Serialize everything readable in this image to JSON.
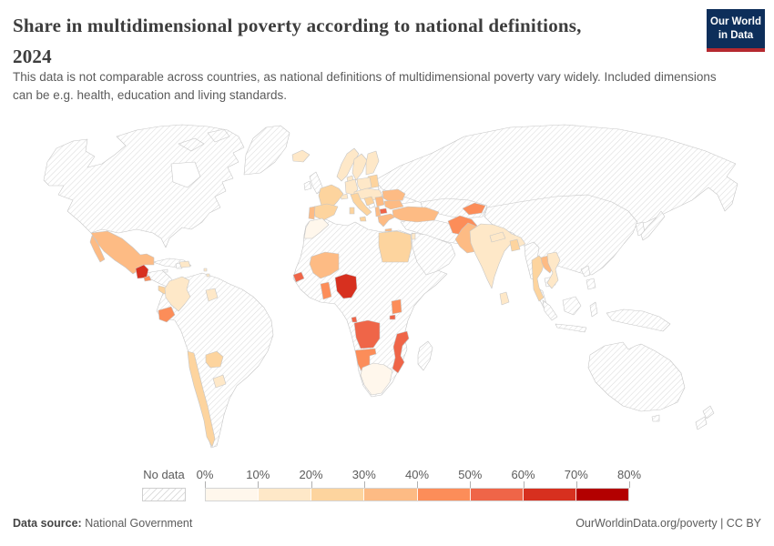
{
  "header": {
    "title_line1": "Share in multidimensional poverty according to national definitions,",
    "title_line2": "2024",
    "subtitle": "This data is not comparable across countries, as national definitions of multidimensional poverty vary widely. Included dimensions can be e.g. health, education and living standards.",
    "logo": {
      "line1": "Our World",
      "line2": "in Data",
      "bg_color": "#0d2e5a",
      "accent_color": "#b5292f"
    }
  },
  "legend": {
    "no_data_label": "No data",
    "tick_labels": [
      "0%",
      "10%",
      "20%",
      "30%",
      "40%",
      "50%",
      "60%",
      "70%",
      "80%"
    ],
    "bins": [
      {
        "range": "0%-10%",
        "color": "#fff7ec"
      },
      {
        "range": "10%-20%",
        "color": "#fee8c8"
      },
      {
        "range": "20%-30%",
        "color": "#fdd49e"
      },
      {
        "range": "30%-40%",
        "color": "#fdbb84"
      },
      {
        "range": "40%-50%",
        "color": "#fc8d59"
      },
      {
        "range": "50%-60%",
        "color": "#ef6548"
      },
      {
        "range": "60%-70%",
        "color": "#d7301f"
      },
      {
        "range": "70%-80%",
        "color": "#b30000"
      }
    ]
  },
  "footer": {
    "source_label": "Data source:",
    "source_value": " National Government",
    "right_text": "OurWorldinData.org/poverty | CC BY"
  },
  "chart_data": {
    "type": "choropleth-map",
    "title": "Share in multidimensional poverty according to national definitions, 2024",
    "unit": "%",
    "no_data_style": "diagonal-hatch",
    "color_scheme": "OrRd",
    "bin_edges": [
      0,
      10,
      20,
      30,
      40,
      50,
      60,
      70,
      80
    ],
    "countries": [
      {
        "id": "mexico",
        "name": "Mexico",
        "bin": "30-40%",
        "color": "#fdbb84"
      },
      {
        "id": "guatemala",
        "name": "Guatemala",
        "bin": "60-70%",
        "color": "#d7301f"
      },
      {
        "id": "el-salvador",
        "name": "El Salvador",
        "bin": "40-50%",
        "color": "#fc8d59"
      },
      {
        "id": "costa-rica",
        "name": "Costa Rica",
        "bin": "20-30%",
        "color": "#fdd49e"
      },
      {
        "id": "panama",
        "name": "Panama",
        "bin": "20-30%",
        "color": "#fdd49e"
      },
      {
        "id": "dominican-republic",
        "name": "Dominican Republic",
        "bin": "10-20%",
        "color": "#fee8c8"
      },
      {
        "id": "lesser-antilles",
        "name": "Lesser Antilles",
        "bin": "10-20%",
        "color": "#fee8c8"
      },
      {
        "id": "colombia",
        "name": "Colombia",
        "bin": "10-20%",
        "color": "#fee8c8"
      },
      {
        "id": "guyana",
        "name": "Guyana",
        "bin": "10-20%",
        "color": "#fee8c8"
      },
      {
        "id": "ecuador",
        "name": "Ecuador",
        "bin": "40-50%",
        "color": "#fc8d59"
      },
      {
        "id": "chile",
        "name": "Chile",
        "bin": "20-30%",
        "color": "#fdd49e"
      },
      {
        "id": "paraguay",
        "name": "Paraguay",
        "bin": "20-30%",
        "color": "#fdd49e"
      },
      {
        "id": "uruguay",
        "name": "Uruguay",
        "bin": "10-20%",
        "color": "#fee8c8"
      },
      {
        "id": "iceland",
        "name": "Iceland",
        "bin": "10-20%",
        "color": "#fee8c8"
      },
      {
        "id": "norway",
        "name": "Norway",
        "bin": "10-20%",
        "color": "#fee8c8"
      },
      {
        "id": "sweden",
        "name": "Sweden",
        "bin": "10-20%",
        "color": "#fee8c8"
      },
      {
        "id": "finland",
        "name": "Finland",
        "bin": "10-20%",
        "color": "#fee8c8"
      },
      {
        "id": "denmark",
        "name": "Denmark",
        "bin": "10-20%",
        "color": "#fee8c8"
      },
      {
        "id": "baltics",
        "name": "Baltic states",
        "bin": "20-30%",
        "color": "#fdd49e"
      },
      {
        "id": "germany",
        "name": "Germany",
        "bin": "10-20%",
        "color": "#fee8c8"
      },
      {
        "id": "poland",
        "name": "Poland",
        "bin": "10-20%",
        "color": "#fee8c8"
      },
      {
        "id": "central-europe",
        "name": "Czechia / Slovakia / Austria / Hungary",
        "bin": "10-20%",
        "color": "#fee8c8"
      },
      {
        "id": "switzerland",
        "name": "Switzerland",
        "bin": "10-20%",
        "color": "#fee8c8"
      },
      {
        "id": "france",
        "name": "France",
        "bin": "20-30%",
        "color": "#fdd49e"
      },
      {
        "id": "spain",
        "name": "Spain",
        "bin": "20-30%",
        "color": "#fdd49e"
      },
      {
        "id": "portugal",
        "name": "Portugal",
        "bin": "30-40%",
        "color": "#fdbb84"
      },
      {
        "id": "italy",
        "name": "Italy",
        "bin": "20-30%",
        "color": "#fdd49e"
      },
      {
        "id": "croatia",
        "name": "Croatia",
        "bin": "20-30%",
        "color": "#fdd49e"
      },
      {
        "id": "serbia",
        "name": "Serbia",
        "bin": "30-40%",
        "color": "#fdbb84"
      },
      {
        "id": "romania",
        "name": "Romania",
        "bin": "30-40%",
        "color": "#fdbb84"
      },
      {
        "id": "bulgaria",
        "name": "Bulgaria",
        "bin": "30-40%",
        "color": "#fdbb84"
      },
      {
        "id": "north-macedonia",
        "name": "North Macedonia",
        "bin": "50-60%",
        "color": "#ef6548"
      },
      {
        "id": "albania",
        "name": "Albania",
        "bin": "30-40%",
        "color": "#fdbb84"
      },
      {
        "id": "greece",
        "name": "Greece",
        "bin": "30-40%",
        "color": "#fdbb84"
      },
      {
        "id": "turkey",
        "name": "Turkey",
        "bin": "30-40%",
        "color": "#fdbb84"
      },
      {
        "id": "israel",
        "name": "Israel",
        "bin": "10-20%",
        "color": "#fee8c8"
      },
      {
        "id": "morocco",
        "name": "Morocco",
        "bin": "0-10%",
        "color": "#fff7ec"
      },
      {
        "id": "egypt",
        "name": "Egypt",
        "bin": "20-30%",
        "color": "#fdd49e"
      },
      {
        "id": "mali",
        "name": "Mali",
        "bin": "30-40%",
        "color": "#fdbb84"
      },
      {
        "id": "senegal",
        "name": "Senegal",
        "bin": "50-60%",
        "color": "#ef6548"
      },
      {
        "id": "ghana",
        "name": "Ghana",
        "bin": "40-50%",
        "color": "#fc8d59"
      },
      {
        "id": "nigeria",
        "name": "Nigeria",
        "bin": "60-70%",
        "color": "#d7301f"
      },
      {
        "id": "uganda",
        "name": "Uganda",
        "bin": "40-50%",
        "color": "#fc8d59"
      },
      {
        "id": "rwanda",
        "name": "Rwanda",
        "bin": "50-60%",
        "color": "#ef6548"
      },
      {
        "id": "angola",
        "name": "Angola",
        "bin": "50-60%",
        "color": "#ef6548"
      },
      {
        "id": "namibia",
        "name": "Namibia",
        "bin": "40-50%",
        "color": "#fc8d59"
      },
      {
        "id": "mozambique",
        "name": "Mozambique",
        "bin": "50-60%",
        "color": "#ef6548"
      },
      {
        "id": "south-africa",
        "name": "South Africa",
        "bin": "0-10%",
        "color": "#fff7ec"
      },
      {
        "id": "kyrgyzstan",
        "name": "Kyrgyzstan",
        "bin": "40-50%",
        "color": "#fc8d59"
      },
      {
        "id": "afghanistan",
        "name": "Afghanistan",
        "bin": "40-50%",
        "color": "#fc8d59"
      },
      {
        "id": "pakistan",
        "name": "Pakistan",
        "bin": "30-40%",
        "color": "#fdbb84"
      },
      {
        "id": "india",
        "name": "India",
        "bin": "10-20%",
        "color": "#fee8c8"
      },
      {
        "id": "nepal",
        "name": "Nepal",
        "bin": "10-20%",
        "color": "#fee8c8"
      },
      {
        "id": "bangladesh",
        "name": "Bangladesh",
        "bin": "20-30%",
        "color": "#fdd49e"
      },
      {
        "id": "sri-lanka",
        "name": "Sri Lanka",
        "bin": "10-20%",
        "color": "#fee8c8"
      },
      {
        "id": "thailand",
        "name": "Thailand",
        "bin": "20-30%",
        "color": "#fdd49e"
      },
      {
        "id": "laos",
        "name": "Laos",
        "bin": "30-40%",
        "color": "#fdbb84"
      },
      {
        "id": "vietnam",
        "name": "Vietnam",
        "bin": "10-20%",
        "color": "#fee8c8"
      }
    ]
  }
}
